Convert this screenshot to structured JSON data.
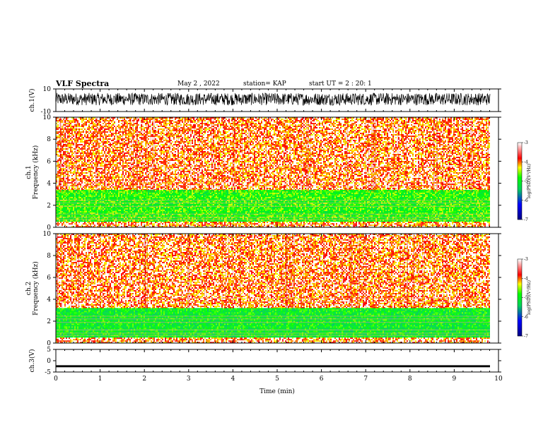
{
  "header": {
    "title": "VLF Spectra",
    "date": "May 2 , 2022",
    "station": "station= KAP",
    "start": "start UT = 2 : 20: 1"
  },
  "colors": {
    "bg": "#ffffff",
    "axis": "#000000",
    "colormap": [
      "#000000",
      "#0000ff",
      "#00ff00",
      "#ffff00",
      "#ff0000",
      "#ffffff"
    ]
  },
  "chart_data": [
    {
      "id": "ch1-waveform",
      "type": "line",
      "ylabel": "ch.1(V)",
      "ylim": [
        -10,
        10
      ],
      "yticks": [
        "10",
        "-10"
      ],
      "xlim": [
        0,
        10
      ],
      "series": [
        {
          "values_desc": "dense noise filling roughly -5 to 7 V"
        }
      ]
    },
    {
      "id": "ch1-spectrogram",
      "type": "heatmap",
      "ylabel": "ch.1\nFrequency (kHz)",
      "ylim": [
        0,
        10
      ],
      "yticks": [
        "0",
        "2",
        "4",
        "6",
        "8",
        "10"
      ],
      "xlim": [
        0,
        10
      ],
      "colorbar": {
        "label": "log(PSD)(V²/Hz)",
        "range": [
          -7,
          -3
        ],
        "ticks": [
          "-3",
          "-4",
          "-5",
          "-6",
          "-7"
        ]
      },
      "bands": [
        {
          "from_khz": 3.4,
          "to_khz": 10,
          "level": -4.0
        },
        {
          "from_khz": 0.5,
          "to_khz": 3.4,
          "level": -4.8
        },
        {
          "from_khz": 0,
          "to_khz": 0.5,
          "level": -4.0
        }
      ]
    },
    {
      "id": "ch2-spectrogram",
      "type": "heatmap",
      "ylabel": "ch.2\nFrequency (kHz)",
      "ylim": [
        0,
        10
      ],
      "yticks": [
        "0",
        "2",
        "4",
        "6",
        "8",
        "10"
      ],
      "xlim": [
        0,
        10
      ],
      "colorbar": {
        "label": "log(PSD)(V²/Hz)",
        "range": [
          -7,
          -3
        ],
        "ticks": [
          "-3",
          "-4",
          "-5",
          "-6",
          "-7"
        ]
      },
      "bands": [
        {
          "from_khz": 3.2,
          "to_khz": 10,
          "level": -4.0
        },
        {
          "from_khz": 0.5,
          "to_khz": 3.2,
          "level": -5.0
        },
        {
          "from_khz": 0,
          "to_khz": 0.5,
          "level": -4.0
        }
      ]
    },
    {
      "id": "ch3-waveform",
      "type": "line",
      "ylabel": "ch.3(V)",
      "ylim": [
        -5,
        5
      ],
      "yticks": [
        "5",
        "0",
        "-5"
      ],
      "xlim": [
        0,
        10
      ],
      "xticks": [
        "0",
        "1",
        "2",
        "3",
        "4",
        "5",
        "6",
        "7",
        "8",
        "9",
        "10"
      ],
      "xlabel": "Time (min)",
      "series": [
        {
          "values_desc": "flat thick band near -2.4 V"
        }
      ]
    }
  ]
}
